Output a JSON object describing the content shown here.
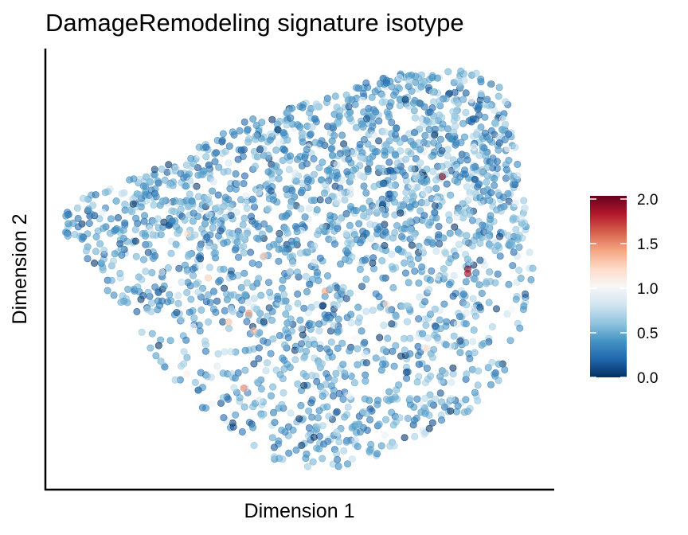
{
  "chart_data": {
    "type": "scatter",
    "title": "DamageRemodeling signature isotype",
    "xlabel": "Dimension 1",
    "ylabel": "Dimension 2",
    "color_scale": {
      "name": "RdBu (reversed)",
      "domain": [
        0.0,
        2.0
      ],
      "ticks": [
        "0.0",
        "0.5",
        "1.0",
        "1.5",
        "2.0"
      ],
      "tick_values": [
        0.0,
        0.5,
        1.0,
        1.5,
        2.0
      ],
      "stops": [
        "#053061",
        "#2166ac",
        "#4393c3",
        "#92c5de",
        "#d1e5f0",
        "#f7f7f7",
        "#fddbc7",
        "#f4a582",
        "#d6604d",
        "#b2182b",
        "#67001f"
      ],
      "legend_position": "right"
    },
    "point_opacity": 0.6,
    "x_ticks_shown": false,
    "y_ticks_shown": false,
    "grid": false,
    "notable_points": [
      {
        "x": 0.78,
        "y": 0.29,
        "value": 1.9
      },
      {
        "x": 0.41,
        "y": 0.64,
        "value": 1.3
      },
      {
        "x": 0.55,
        "y": 0.55,
        "value": 1.4
      },
      {
        "x": 0.43,
        "y": 0.47,
        "value": 1.3
      },
      {
        "x": 0.39,
        "y": 0.77,
        "value": 1.5
      },
      {
        "x": 0.4,
        "y": 0.6,
        "value": 1.45
      },
      {
        "x": 0.83,
        "y": 0.51,
        "value": 1.8
      },
      {
        "x": 0.83,
        "y": 0.5,
        "value": 1.9
      },
      {
        "x": 0.36,
        "y": 0.62,
        "value": 1.3
      },
      {
        "x": 0.28,
        "y": 0.42,
        "value": 1.2
      },
      {
        "x": 0.32,
        "y": 0.52,
        "value": 1.25
      },
      {
        "x": 0.75,
        "y": 0.68,
        "value": 1.2
      },
      {
        "x": 0.67,
        "y": 0.58,
        "value": 1.2
      }
    ]
  }
}
